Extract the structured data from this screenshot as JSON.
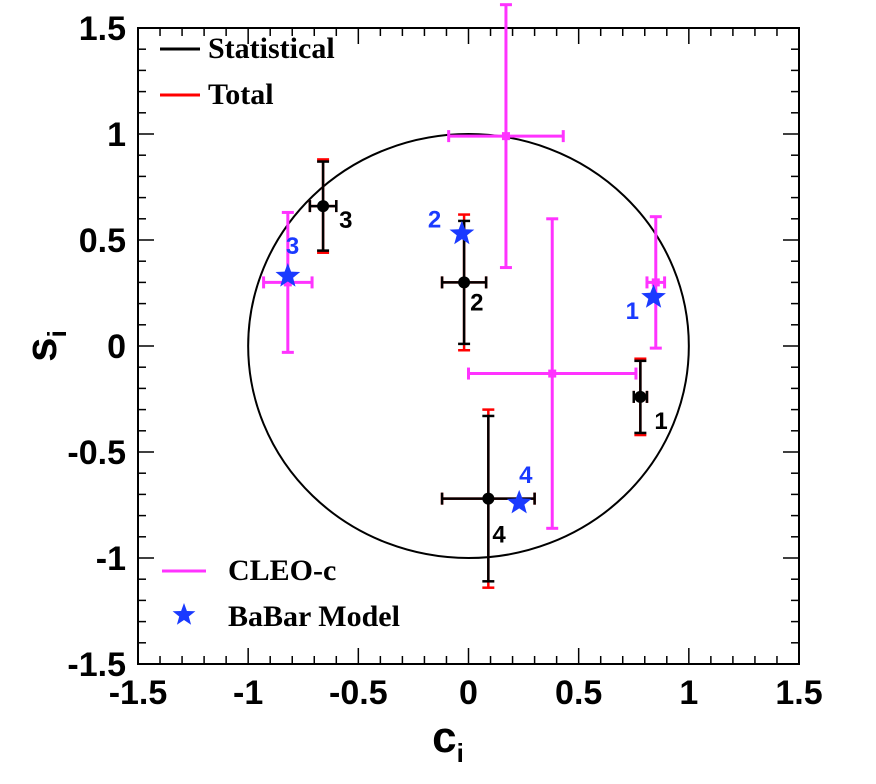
{
  "chart_data": {
    "type": "scatter",
    "xlabel": "c",
    "xlabel_sub": "i",
    "ylabel": "s",
    "ylabel_sub": "i",
    "xlim": [
      -1.5,
      1.5
    ],
    "ylim": [
      -1.5,
      1.5
    ],
    "x_ticks": [
      -1.5,
      -1,
      -0.5,
      0,
      0.5,
      1,
      1.5
    ],
    "x_tick_labels": [
      "-1.5",
      "-1",
      "-0.5",
      "0",
      "0.5",
      "1",
      "1.5"
    ],
    "y_ticks": [
      -1.5,
      -1,
      -0.5,
      0,
      0.5,
      1,
      1.5
    ],
    "y_tick_labels": [
      "-1.5",
      "-1",
      "-0.5",
      "0",
      "0.5",
      "1",
      "1.5"
    ],
    "grid": false,
    "unit_circle": true,
    "legend_top": {
      "placement": "top-left",
      "entries": [
        {
          "label": "Statistical",
          "color": "#000000"
        },
        {
          "label": "Total",
          "color": "#ff0000"
        }
      ]
    },
    "legend_bottom": {
      "placement": "bottom-left",
      "entries": [
        {
          "label": "CLEO-c",
          "color": "#ff33ff"
        },
        {
          "label": "BaBar Model",
          "color": "#1a3aff"
        }
      ]
    },
    "measurement": {
      "marker_color": "#000000",
      "stat_color": "#000000",
      "total_color": "#ff0000",
      "points": [
        {
          "label": "1",
          "x": 0.78,
          "y": -0.24,
          "x_stat": 0.03,
          "x_tot": 0.03,
          "y_stat": 0.17,
          "y_tot": 0.18
        },
        {
          "label": "2",
          "x": -0.02,
          "y": 0.3,
          "x_stat": 0.1,
          "x_tot": 0.1,
          "y_stat": 0.29,
          "y_tot": 0.32
        },
        {
          "label": "3",
          "x": -0.66,
          "y": 0.66,
          "x_stat": 0.06,
          "x_tot": 0.06,
          "y_stat": 0.21,
          "y_tot": 0.22
        },
        {
          "label": "4",
          "x": 0.09,
          "y": -0.72,
          "x_stat": 0.21,
          "x_tot": 0.21,
          "y_stat": 0.39,
          "y_tot": 0.42
        }
      ]
    },
    "cleo": {
      "color": "#ff33ff",
      "points": [
        {
          "x": 0.85,
          "y": 0.3,
          "xerr": 0.04,
          "yerr": 0.31
        },
        {
          "x": 0.17,
          "y": 0.99,
          "xerr": 0.26,
          "yerr": 0.62
        },
        {
          "x": -0.82,
          "y": 0.3,
          "xerr": 0.11,
          "yerr": 0.33
        },
        {
          "x": 0.38,
          "y": -0.13,
          "xerr": 0.38,
          "yerr": 0.73
        }
      ]
    },
    "babar": {
      "color": "#1a3aff",
      "points": [
        {
          "label": "1",
          "x": 0.84,
          "y": 0.23
        },
        {
          "label": "2",
          "x": -0.03,
          "y": 0.53
        },
        {
          "label": "3",
          "x": -0.82,
          "y": 0.33
        },
        {
          "label": "4",
          "x": 0.23,
          "y": -0.74
        }
      ]
    }
  }
}
